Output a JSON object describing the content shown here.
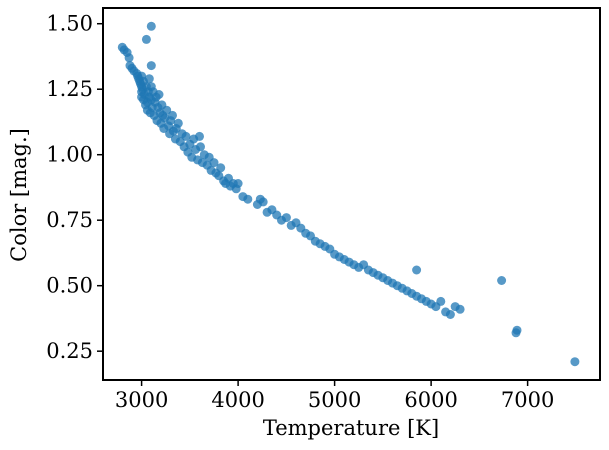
{
  "chart_data": {
    "type": "scatter",
    "title": "",
    "xlabel": "Temperature [K]",
    "ylabel": "Color [mag.]",
    "xlim": [
      2600,
      7750
    ],
    "ylim": [
      0.14,
      1.56
    ],
    "grid": false,
    "legend": "none",
    "x_ticks": [
      3000,
      4000,
      5000,
      6000,
      7000
    ],
    "x_tick_labels": [
      "3000",
      "4000",
      "5000",
      "6000",
      "7000"
    ],
    "y_ticks": [
      0.25,
      0.5,
      0.75,
      1.0,
      1.25,
      1.5
    ],
    "y_tick_labels": [
      "0.25",
      "0.50",
      "0.75",
      "1.00",
      "1.25",
      "1.50"
    ],
    "marker_color": "#1f77b4",
    "marker_alpha": 0.75,
    "series": [
      {
        "points": [
          [
            2800,
            1.41
          ],
          [
            2820,
            1.4
          ],
          [
            2850,
            1.39
          ],
          [
            2870,
            1.37
          ],
          [
            2880,
            1.34
          ],
          [
            2900,
            1.33
          ],
          [
            2920,
            1.32
          ],
          [
            2950,
            1.31
          ],
          [
            2960,
            1.3
          ],
          [
            2970,
            1.29
          ],
          [
            2980,
            1.28
          ],
          [
            2990,
            1.27
          ],
          [
            3000,
            1.3
          ],
          [
            3000,
            1.26
          ],
          [
            3000,
            1.24
          ],
          [
            3000,
            1.22
          ],
          [
            3010,
            1.25
          ],
          [
            3020,
            1.21
          ],
          [
            3020,
            1.28
          ],
          [
            3030,
            1.23
          ],
          [
            3040,
            1.19
          ],
          [
            3050,
            1.26
          ],
          [
            3060,
            1.2
          ],
          [
            3060,
            1.17
          ],
          [
            3070,
            1.24
          ],
          [
            3080,
            1.22
          ],
          [
            3080,
            1.29
          ],
          [
            3090,
            1.16
          ],
          [
            3100,
            1.21
          ],
          [
            3100,
            1.26
          ],
          [
            3110,
            1.18
          ],
          [
            3120,
            1.24
          ],
          [
            3130,
            1.15
          ],
          [
            3140,
            1.2
          ],
          [
            3150,
            1.22
          ],
          [
            3160,
            1.13
          ],
          [
            3170,
            1.18
          ],
          [
            3180,
            1.23
          ],
          [
            3190,
            1.16
          ],
          [
            3200,
            1.12
          ],
          [
            3210,
            1.19
          ],
          [
            3220,
            1.15
          ],
          [
            3230,
            1.1
          ],
          [
            3240,
            1.14
          ],
          [
            3260,
            1.17
          ],
          [
            3280,
            1.11
          ],
          [
            3290,
            1.08
          ],
          [
            3300,
            1.13
          ],
          [
            3320,
            1.15
          ],
          [
            3330,
            1.09
          ],
          [
            3350,
            1.06
          ],
          [
            3360,
            1.1
          ],
          [
            3380,
            1.12
          ],
          [
            3400,
            1.05
          ],
          [
            3420,
            1.08
          ],
          [
            3440,
            1.03
          ],
          [
            3460,
            1.07
          ],
          [
            3480,
            1.01
          ],
          [
            3500,
            1.04
          ],
          [
            3520,
            0.99
          ],
          [
            3540,
            1.06
          ],
          [
            3560,
            1.02
          ],
          [
            3580,
            0.98
          ],
          [
            3600,
            1.07
          ],
          [
            3610,
            1.03
          ],
          [
            3630,
            0.97
          ],
          [
            3650,
            1.0
          ],
          [
            3680,
            0.96
          ],
          [
            3700,
            0.99
          ],
          [
            3720,
            0.94
          ],
          [
            3750,
            0.97
          ],
          [
            3770,
            0.93
          ],
          [
            3800,
            0.92
          ],
          [
            3820,
            0.95
          ],
          [
            3850,
            0.9
          ],
          [
            3870,
            0.89
          ],
          [
            3900,
            0.91
          ],
          [
            3920,
            0.88
          ],
          [
            3950,
            0.89
          ],
          [
            3980,
            0.87
          ],
          [
            4000,
            0.89
          ],
          [
            4050,
            0.84
          ],
          [
            4100,
            0.83
          ],
          [
            4200,
            0.81
          ],
          [
            4230,
            0.83
          ],
          [
            4260,
            0.82
          ],
          [
            4300,
            0.78
          ],
          [
            4350,
            0.79
          ],
          [
            4400,
            0.77
          ],
          [
            4450,
            0.75
          ],
          [
            4500,
            0.76
          ],
          [
            4550,
            0.73
          ],
          [
            4600,
            0.74
          ],
          [
            4650,
            0.72
          ],
          [
            4700,
            0.7
          ],
          [
            4750,
            0.69
          ],
          [
            4800,
            0.67
          ],
          [
            4850,
            0.66
          ],
          [
            4900,
            0.65
          ],
          [
            4950,
            0.64
          ],
          [
            5000,
            0.62
          ],
          [
            5050,
            0.61
          ],
          [
            5100,
            0.6
          ],
          [
            5150,
            0.59
          ],
          [
            5200,
            0.58
          ],
          [
            5250,
            0.57
          ],
          [
            5300,
            0.58
          ],
          [
            5350,
            0.56
          ],
          [
            5400,
            0.55
          ],
          [
            5450,
            0.54
          ],
          [
            5500,
            0.53
          ],
          [
            5550,
            0.52
          ],
          [
            5600,
            0.51
          ],
          [
            5650,
            0.5
          ],
          [
            5700,
            0.49
          ],
          [
            5750,
            0.48
          ],
          [
            5800,
            0.47
          ],
          [
            5850,
            0.46
          ],
          [
            5900,
            0.45
          ],
          [
            5950,
            0.44
          ],
          [
            6000,
            0.43
          ],
          [
            6050,
            0.42
          ],
          [
            6100,
            0.44
          ],
          [
            6150,
            0.4
          ],
          [
            6200,
            0.39
          ],
          [
            6250,
            0.42
          ],
          [
            6300,
            0.41
          ],
          [
            3100,
            1.49
          ],
          [
            3050,
            1.44
          ],
          [
            3100,
            1.34
          ],
          [
            5850,
            0.56
          ],
          [
            6730,
            0.52
          ],
          [
            6890,
            0.33
          ],
          [
            6880,
            0.32
          ],
          [
            7490,
            0.21
          ]
        ]
      }
    ]
  }
}
